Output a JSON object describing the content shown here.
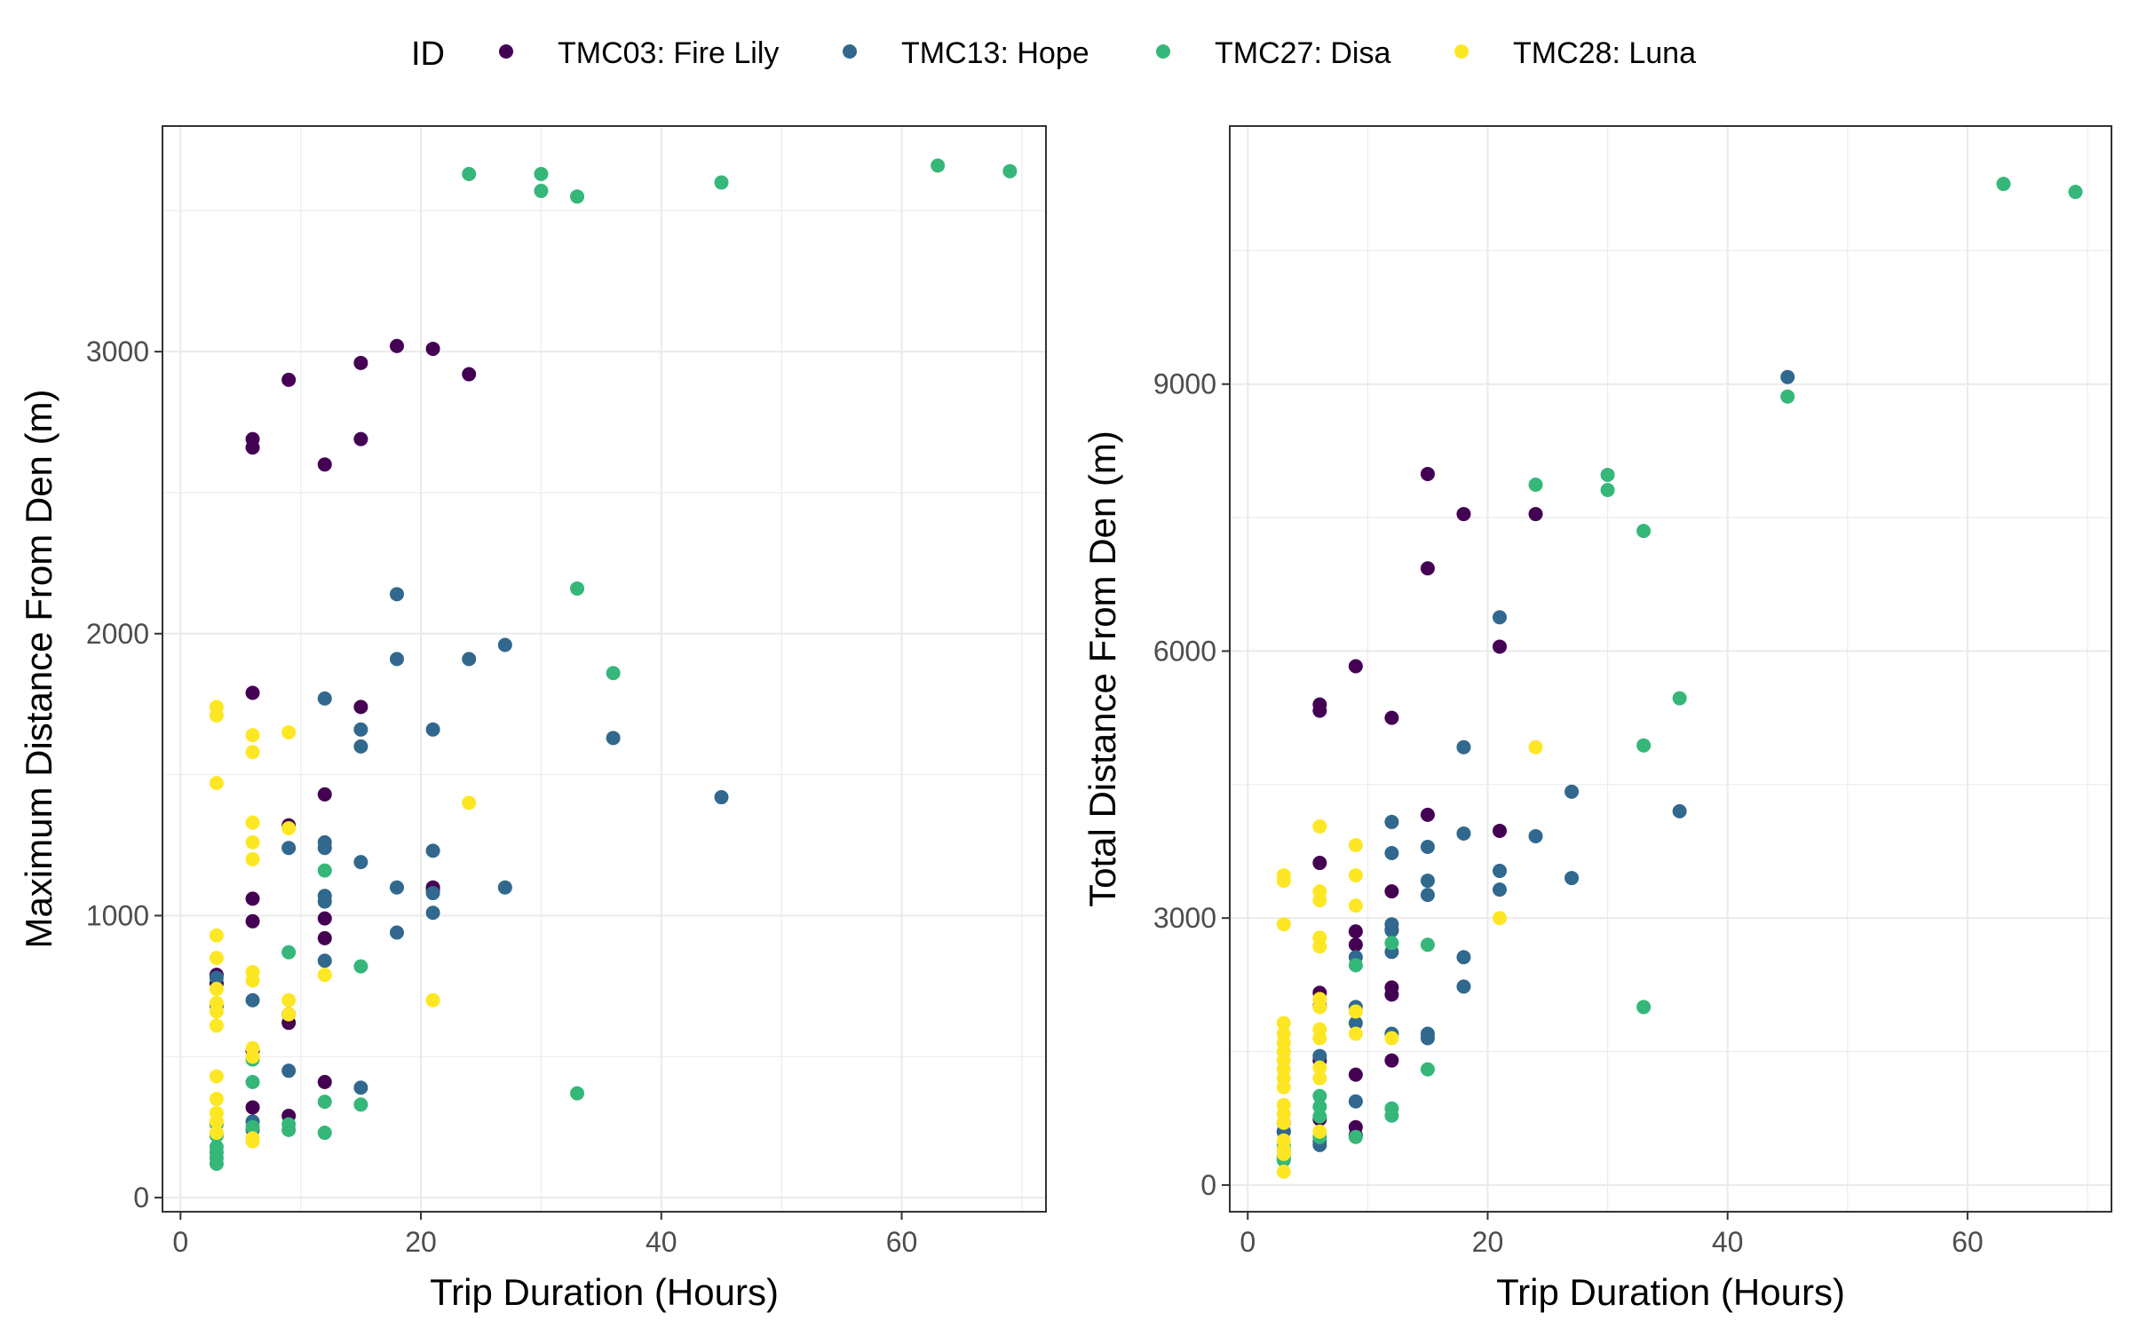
{
  "legend": {
    "title": "ID",
    "items": [
      {
        "label": "TMC03: Fire Lily",
        "color": "#440154"
      },
      {
        "label": "TMC13: Hope",
        "color": "#31688e"
      },
      {
        "label": "TMC27: Disa",
        "color": "#35b779"
      },
      {
        "label": "TMC28: Luna",
        "color": "#fde725"
      }
    ]
  },
  "chart_data": [
    {
      "type": "scatter",
      "xlabel": "Trip Duration (Hours)",
      "ylabel": "Maximum Distance From Den (m)",
      "xlim": [
        -1.5,
        72
      ],
      "ylim": [
        -50,
        3800
      ],
      "xticks": [
        0,
        20,
        40,
        60
      ],
      "yticks": [
        0,
        1000,
        2000,
        3000
      ],
      "grid": true,
      "legend_position": "top",
      "series": [
        {
          "name": "TMC03: Fire Lily",
          "points": [
            [
              6,
              2690
            ],
            [
              6,
              2660
            ],
            [
              9,
              2900
            ],
            [
              12,
              2600
            ],
            [
              15,
              2960
            ],
            [
              15,
              2690
            ],
            [
              18,
              3020
            ],
            [
              21,
              3010
            ],
            [
              24,
              2920
            ],
            [
              6,
              1790
            ],
            [
              15,
              1740
            ],
            [
              12,
              1430
            ],
            [
              9,
              1320
            ],
            [
              6,
              1060
            ],
            [
              6,
              980
            ],
            [
              12,
              990
            ],
            [
              12,
              920
            ],
            [
              21,
              1100
            ],
            [
              21,
              1090
            ],
            [
              9,
              650
            ],
            [
              9,
              620
            ],
            [
              6,
              520
            ],
            [
              6,
              320
            ],
            [
              9,
              290
            ],
            [
              12,
              410
            ],
            [
              3,
              790
            ],
            [
              3,
              760
            ]
          ]
        },
        {
          "name": "TMC13: Hope",
          "points": [
            [
              18,
              2140
            ],
            [
              18,
              1910
            ],
            [
              24,
              1910
            ],
            [
              27,
              1960
            ],
            [
              12,
              1770
            ],
            [
              15,
              1660
            ],
            [
              15,
              1600
            ],
            [
              21,
              1660
            ],
            [
              36,
              1630
            ],
            [
              45,
              1420
            ],
            [
              9,
              1240
            ],
            [
              12,
              1260
            ],
            [
              12,
              1240
            ],
            [
              15,
              1190
            ],
            [
              21,
              1230
            ],
            [
              12,
              1070
            ],
            [
              12,
              1050
            ],
            [
              18,
              1100
            ],
            [
              21,
              1080
            ],
            [
              21,
              1010
            ],
            [
              27,
              1100
            ],
            [
              18,
              940
            ],
            [
              12,
              840
            ],
            [
              6,
              700
            ],
            [
              9,
              450
            ],
            [
              15,
              390
            ],
            [
              6,
              270
            ],
            [
              6,
              240
            ],
            [
              3,
              780
            ],
            [
              3,
              680
            ]
          ]
        },
        {
          "name": "TMC27: Disa",
          "points": [
            [
              24,
              3630
            ],
            [
              30,
              3630
            ],
            [
              30,
              3570
            ],
            [
              33,
              3550
            ],
            [
              45,
              3600
            ],
            [
              63,
              3660
            ],
            [
              69,
              3640
            ],
            [
              33,
              2160
            ],
            [
              36,
              1860
            ],
            [
              12,
              1160
            ],
            [
              9,
              870
            ],
            [
              15,
              820
            ],
            [
              12,
              340
            ],
            [
              15,
              330
            ],
            [
              33,
              370
            ],
            [
              6,
              410
            ],
            [
              6,
              490
            ],
            [
              9,
              260
            ],
            [
              9,
              240
            ],
            [
              12,
              230
            ],
            [
              6,
              250
            ],
            [
              3,
              260
            ],
            [
              3,
              220
            ],
            [
              3,
              180
            ],
            [
              3,
              140
            ],
            [
              3,
              120
            ],
            [
              3,
              160
            ]
          ]
        },
        {
          "name": "TMC28: Luna",
          "points": [
            [
              3,
              1740
            ],
            [
              3,
              1710
            ],
            [
              3,
              1470
            ],
            [
              6,
              1640
            ],
            [
              6,
              1580
            ],
            [
              9,
              1650
            ],
            [
              6,
              1330
            ],
            [
              6,
              1260
            ],
            [
              6,
              1200
            ],
            [
              9,
              1310
            ],
            [
              24,
              1400
            ],
            [
              3,
              930
            ],
            [
              3,
              850
            ],
            [
              3,
              740
            ],
            [
              3,
              690
            ],
            [
              3,
              660
            ],
            [
              3,
              610
            ],
            [
              6,
              800
            ],
            [
              6,
              770
            ],
            [
              9,
              700
            ],
            [
              9,
              650
            ],
            [
              12,
              790
            ],
            [
              21,
              700
            ],
            [
              3,
              430
            ],
            [
              3,
              350
            ],
            [
              3,
              300
            ],
            [
              3,
              270
            ],
            [
              3,
              230
            ],
            [
              6,
              530
            ],
            [
              6,
              500
            ],
            [
              6,
              210
            ],
            [
              6,
              200
            ]
          ]
        }
      ]
    },
    {
      "type": "scatter",
      "xlabel": "Trip Duration (Hours)",
      "ylabel": "Total Distance From Den (m)",
      "xlim": [
        -1.5,
        72
      ],
      "ylim": [
        -300,
        11900
      ],
      "xticks": [
        0,
        20,
        40,
        60
      ],
      "yticks": [
        0,
        3000,
        6000,
        9000
      ],
      "grid": true,
      "legend_position": "top",
      "series": [
        {
          "name": "TMC03: Fire Lily",
          "points": [
            [
              15,
              7990
            ],
            [
              18,
              7540
            ],
            [
              24,
              7540
            ],
            [
              15,
              6930
            ],
            [
              21,
              6050
            ],
            [
              9,
              5830
            ],
            [
              6,
              5400
            ],
            [
              6,
              5330
            ],
            [
              12,
              5250
            ],
            [
              15,
              4160
            ],
            [
              21,
              3980
            ],
            [
              6,
              3620
            ],
            [
              12,
              3300
            ],
            [
              9,
              2850
            ],
            [
              9,
              2700
            ],
            [
              12,
              2870
            ],
            [
              12,
              2220
            ],
            [
              12,
              2140
            ],
            [
              6,
              2160
            ],
            [
              6,
              2010
            ],
            [
              6,
              1400
            ],
            [
              12,
              1400
            ],
            [
              9,
              1240
            ],
            [
              6,
              740
            ],
            [
              9,
              650
            ],
            [
              3,
              600
            ],
            [
              3,
              700
            ],
            [
              9,
              560
            ]
          ]
        },
        {
          "name": "TMC13: Hope",
          "points": [
            [
              45,
              9080
            ],
            [
              21,
              6380
            ],
            [
              18,
              4920
            ],
            [
              27,
              4420
            ],
            [
              36,
              4200
            ],
            [
              18,
              3950
            ],
            [
              24,
              3920
            ],
            [
              12,
              4080
            ],
            [
              15,
              3800
            ],
            [
              12,
              3730
            ],
            [
              15,
              3420
            ],
            [
              21,
              3530
            ],
            [
              15,
              3260
            ],
            [
              21,
              3320
            ],
            [
              27,
              3450
            ],
            [
              12,
              2930
            ],
            [
              12,
              2860
            ],
            [
              12,
              2620
            ],
            [
              9,
              2560
            ],
            [
              18,
              2560
            ],
            [
              18,
              2230
            ],
            [
              9,
              2000
            ],
            [
              9,
              1820
            ],
            [
              12,
              1700
            ],
            [
              15,
              1700
            ],
            [
              15,
              1650
            ],
            [
              6,
              1450
            ],
            [
              9,
              940
            ],
            [
              6,
              490
            ],
            [
              6,
              450
            ],
            [
              3,
              600
            ]
          ]
        },
        {
          "name": "TMC27: Disa",
          "points": [
            [
              63,
              11250
            ],
            [
              69,
              11160
            ],
            [
              45,
              8860
            ],
            [
              30,
              7980
            ],
            [
              24,
              7870
            ],
            [
              30,
              7810
            ],
            [
              33,
              7350
            ],
            [
              36,
              5470
            ],
            [
              33,
              4940
            ],
            [
              15,
              2700
            ],
            [
              12,
              2720
            ],
            [
              9,
              2470
            ],
            [
              33,
              2000
            ],
            [
              15,
              1300
            ],
            [
              12,
              860
            ],
            [
              12,
              780
            ],
            [
              9,
              540
            ],
            [
              6,
              1000
            ],
            [
              6,
              880
            ],
            [
              6,
              770
            ],
            [
              6,
              540
            ],
            [
              3,
              440
            ],
            [
              3,
              390
            ],
            [
              3,
              330
            ],
            [
              3,
              280
            ],
            [
              3,
              310
            ]
          ]
        },
        {
          "name": "TMC28: Luna",
          "points": [
            [
              3,
              3480
            ],
            [
              3,
              3420
            ],
            [
              3,
              2930
            ],
            [
              6,
              4030
            ],
            [
              6,
              3300
            ],
            [
              6,
              3200
            ],
            [
              6,
              2780
            ],
            [
              6,
              2680
            ],
            [
              9,
              3820
            ],
            [
              9,
              3480
            ],
            [
              9,
              3140
            ],
            [
              24,
              4920
            ],
            [
              21,
              3000
            ],
            [
              3,
              1820
            ],
            [
              3,
              1700
            ],
            [
              3,
              1600
            ],
            [
              3,
              1500
            ],
            [
              3,
              1400
            ],
            [
              3,
              1300
            ],
            [
              3,
              1200
            ],
            [
              3,
              1100
            ],
            [
              3,
              900
            ],
            [
              3,
              800
            ],
            [
              3,
              700
            ],
            [
              3,
              500
            ],
            [
              3,
              400
            ],
            [
              3,
              350
            ],
            [
              3,
              150
            ],
            [
              6,
              2090
            ],
            [
              6,
              2000
            ],
            [
              6,
              1750
            ],
            [
              6,
              1650
            ],
            [
              6,
              1320
            ],
            [
              6,
              1200
            ],
            [
              6,
              600
            ],
            [
              9,
              1950
            ],
            [
              9,
              1700
            ],
            [
              12,
              1650
            ]
          ]
        }
      ]
    }
  ]
}
